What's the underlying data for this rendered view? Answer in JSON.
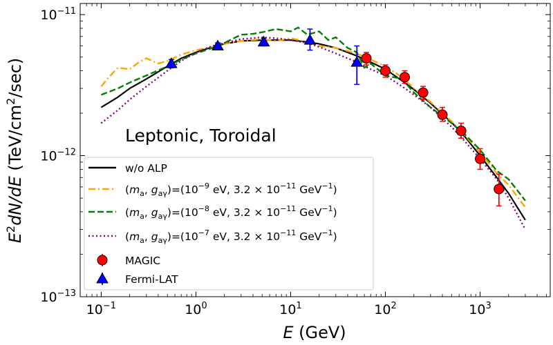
{
  "chart_data": {
    "type": "line",
    "annotation": "Leptonic, Toroidal",
    "xlabel": "E (GeV)",
    "ylabel": "E²dN/dE (TeV/cm²/sec)",
    "xscale": "log",
    "yscale": "log",
    "xlim": [
      0.06,
      5500
    ],
    "ylim": [
      1e-13,
      1.2e-11
    ],
    "x_ticks": [
      {
        "value": 0.1,
        "mantissa": "10",
        "exponent": "−1"
      },
      {
        "value": 1,
        "mantissa": "10",
        "exponent": "0"
      },
      {
        "value": 10,
        "mantissa": "10",
        "exponent": "1"
      },
      {
        "value": 100,
        "mantissa": "10",
        "exponent": "2"
      },
      {
        "value": 1000,
        "mantissa": "10",
        "exponent": "3"
      }
    ],
    "y_ticks": [
      {
        "value": 1e-13,
        "mantissa": "10",
        "exponent": "−13"
      },
      {
        "value": 1e-12,
        "mantissa": "10",
        "exponent": "−12"
      },
      {
        "value": 1e-11,
        "mantissa": "10",
        "exponent": "−11"
      }
    ],
    "legend_position": "lower-left",
    "series": [
      {
        "name": "w/o ALP",
        "style": "solid",
        "color": "#000000",
        "x": [
          0.1,
          0.15,
          0.2,
          0.3,
          0.5,
          0.7,
          1,
          1.5,
          2,
          3,
          5,
          7,
          10,
          15,
          20,
          30,
          50,
          70,
          100,
          150,
          200,
          300,
          500,
          700,
          1000,
          1500,
          2000,
          3000
        ],
        "y": [
          2.2e-12,
          2.6e-12,
          3e-12,
          3.5e-12,
          4.3e-12,
          4.9e-12,
          5.4e-12,
          5.9e-12,
          6.2e-12,
          6.5e-12,
          6.6e-12,
          6.6e-12,
          6.6e-12,
          6.4e-12,
          6.2e-12,
          5.8e-12,
          5.1e-12,
          4.6e-12,
          4.1e-12,
          3.4e-12,
          2.95e-12,
          2.35e-12,
          1.72e-12,
          1.35e-12,
          1e-12,
          7e-13,
          5.4e-13,
          3.5e-13
        ]
      },
      {
        "name_parts": [
          "(",
          "m",
          "a",
          ", ",
          "g",
          "aγ",
          ")=(10",
          "−9",
          " eV, 3.2 × 10",
          "−11",
          " GeV",
          "−1",
          ")"
        ],
        "style": "dashdot",
        "color": "#ffa500",
        "x": [
          0.1,
          0.12,
          0.15,
          0.2,
          0.25,
          0.3,
          0.4,
          0.5,
          0.7,
          1,
          1.5,
          2,
          3,
          5,
          7,
          10,
          15,
          20,
          30,
          50,
          70,
          100,
          150,
          200,
          300,
          500,
          700,
          1000,
          1500,
          2000,
          3000
        ],
        "y": [
          3.1e-12,
          3.6e-12,
          4.2e-12,
          4.1e-12,
          4.6e-12,
          4.9e-12,
          4.5e-12,
          4.7e-12,
          5.2e-12,
          5.6e-12,
          5.9e-12,
          6.2e-12,
          6.5e-12,
          6.7e-12,
          6.5e-12,
          6.8e-12,
          6.4e-12,
          6e-12,
          5.8e-12,
          5.3e-12,
          4.8e-12,
          4.3e-12,
          3.6e-12,
          3e-12,
          2.4e-12,
          1.75e-12,
          1.38e-12,
          1.05e-12,
          7.5e-13,
          6.2e-13,
          4.3e-13
        ]
      },
      {
        "name_parts": [
          "(",
          "m",
          "a",
          ", ",
          "g",
          "aγ",
          ")=(10",
          "−8",
          " eV, 3.2 × 10",
          "−11",
          " GeV",
          "−1",
          ")"
        ],
        "style": "dashed",
        "color": "#008000",
        "x": [
          0.1,
          0.15,
          0.2,
          0.3,
          0.5,
          0.7,
          1,
          1.5,
          2,
          3,
          4,
          5,
          7,
          10,
          12,
          15,
          20,
          25,
          30,
          40,
          50,
          60,
          70,
          100,
          150,
          200,
          300,
          500,
          700,
          1000,
          1500,
          2000,
          3000
        ],
        "y": [
          2.7e-12,
          3e-12,
          3.3e-12,
          3.7e-12,
          4.3e-12,
          4.8e-12,
          5.3e-12,
          5.8e-12,
          6.3e-12,
          7.2e-12,
          7.3e-12,
          7.5e-12,
          7.9e-12,
          7.6e-12,
          8.1e-12,
          7.2e-12,
          7.6e-12,
          6.6e-12,
          6.9e-12,
          5.8e-12,
          5.4e-12,
          4.2e-12,
          4.5e-12,
          3.7e-12,
          3.5e-12,
          2.8e-12,
          2.2e-12,
          1.7e-12,
          1.4e-12,
          1.1e-12,
          7.8e-13,
          6.8e-13,
          4.8e-13
        ]
      },
      {
        "name_parts": [
          "(",
          "m",
          "a",
          ", ",
          "g",
          "aγ",
          ")=(10",
          "−7",
          " eV, 3.2 × 10",
          "−11",
          " GeV",
          "−1",
          ")"
        ],
        "style": "dotted",
        "color": "#800080",
        "x": [
          0.1,
          0.15,
          0.2,
          0.3,
          0.5,
          0.7,
          1,
          1.5,
          2,
          3,
          5,
          7,
          10,
          15,
          20,
          30,
          50,
          70,
          100,
          150,
          200,
          300,
          500,
          700,
          1000,
          1500,
          2000,
          3000
        ],
        "y": [
          1.7e-12,
          2.1e-12,
          2.5e-12,
          3.1e-12,
          4e-12,
          4.7e-12,
          5.4e-12,
          6e-12,
          6.3e-12,
          6.7e-12,
          6.9e-12,
          6.8e-12,
          6.6e-12,
          6.3e-12,
          5.9e-12,
          5.3e-12,
          4.6e-12,
          4.1e-12,
          3.7e-12,
          3.1e-12,
          2.7e-12,
          2.2e-12,
          1.6e-12,
          1.25e-12,
          9.5e-13,
          6.8e-13,
          5e-13,
          3e-13
        ]
      }
    ],
    "data_points": [
      {
        "name": "MAGIC",
        "marker": "circle",
        "color": "#ff0000",
        "points": [
          {
            "x": 63,
            "y": 4.9e-12,
            "ylo": 4.4e-12,
            "yhi": 5.4e-12
          },
          {
            "x": 100,
            "y": 4e-12,
            "ylo": 3.6e-12,
            "yhi": 4.4e-12
          },
          {
            "x": 160,
            "y": 3.6e-12,
            "ylo": 3.25e-12,
            "yhi": 4e-12
          },
          {
            "x": 250,
            "y": 2.8e-12,
            "ylo": 2.5e-12,
            "yhi": 3.1e-12
          },
          {
            "x": 400,
            "y": 1.95e-12,
            "ylo": 1.75e-12,
            "yhi": 2.2e-12
          },
          {
            "x": 630,
            "y": 1.5e-12,
            "ylo": 1.33e-12,
            "yhi": 1.7e-12
          },
          {
            "x": 1000,
            "y": 9.5e-13,
            "ylo": 8e-13,
            "yhi": 1.12e-12
          },
          {
            "x": 1580,
            "y": 5.8e-13,
            "ylo": 4.4e-13,
            "yhi": 7.4e-13
          }
        ]
      },
      {
        "name": "Fermi-LAT",
        "marker": "triangle",
        "color": "#0000ff",
        "points": [
          {
            "x": 0.55,
            "y": 4.5e-12,
            "ylo": 4.2e-12,
            "yhi": 4.8e-12
          },
          {
            "x": 1.7,
            "y": 6e-12,
            "ylo": 5.7e-12,
            "yhi": 6.3e-12
          },
          {
            "x": 5.2,
            "y": 6.4e-12,
            "ylo": 6e-12,
            "yhi": 6.8e-12
          },
          {
            "x": 16,
            "y": 6.6e-12,
            "ylo": 5.6e-12,
            "yhi": 7.9e-12
          },
          {
            "x": 50,
            "y": 4.6e-12,
            "ylo": 3.2e-12,
            "yhi": 6e-12
          }
        ]
      }
    ]
  }
}
